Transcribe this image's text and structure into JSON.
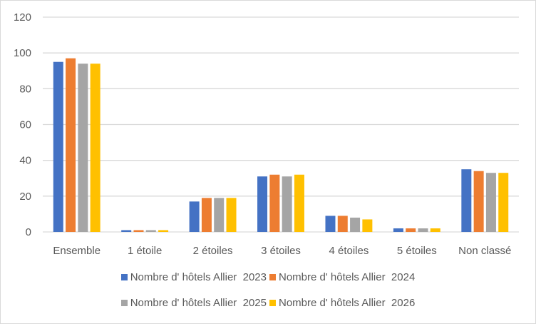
{
  "chart_data": {
    "type": "bar",
    "title": "",
    "xlabel": "",
    "ylabel": "",
    "ylim": [
      0,
      120
    ],
    "yticks": [
      0,
      20,
      40,
      60,
      80,
      100,
      120
    ],
    "grid": true,
    "legend_position": "bottom",
    "categories": [
      "Ensemble",
      "1 étoile",
      "2 étoiles",
      "3 étoiles",
      "4 étoiles",
      "5 étoiles",
      "Non classé"
    ],
    "series": [
      {
        "name": "Nombre d' hôtels Allier  2023",
        "color": "#4472C4",
        "values": [
          95,
          1,
          17,
          31,
          9,
          2,
          35
        ]
      },
      {
        "name": "Nombre d' hôtels Allier  2024",
        "color": "#ED7D31",
        "values": [
          97,
          1,
          19,
          32,
          9,
          2,
          34
        ]
      },
      {
        "name": "Nombre d' hôtels Allier  2025",
        "color": "#A5A5A5",
        "values": [
          94,
          1,
          19,
          31,
          8,
          2,
          33
        ]
      },
      {
        "name": "Nombre d' hôtels Allier  2026",
        "color": "#FFC000",
        "values": [
          94,
          1,
          19,
          32,
          7,
          2,
          33
        ]
      }
    ]
  },
  "legend": {
    "row1": [
      {
        "label": "Nombre d' hôtels Allier  2023",
        "color": "#4472C4"
      },
      {
        "label": "Nombre d' hôtels Allier  2024",
        "color": "#ED7D31"
      }
    ],
    "row2": [
      {
        "label": "Nombre d' hôtels Allier  2025",
        "color": "#A5A5A5"
      },
      {
        "label": "Nombre d' hôtels Allier  2026",
        "color": "#FFC000"
      }
    ]
  }
}
